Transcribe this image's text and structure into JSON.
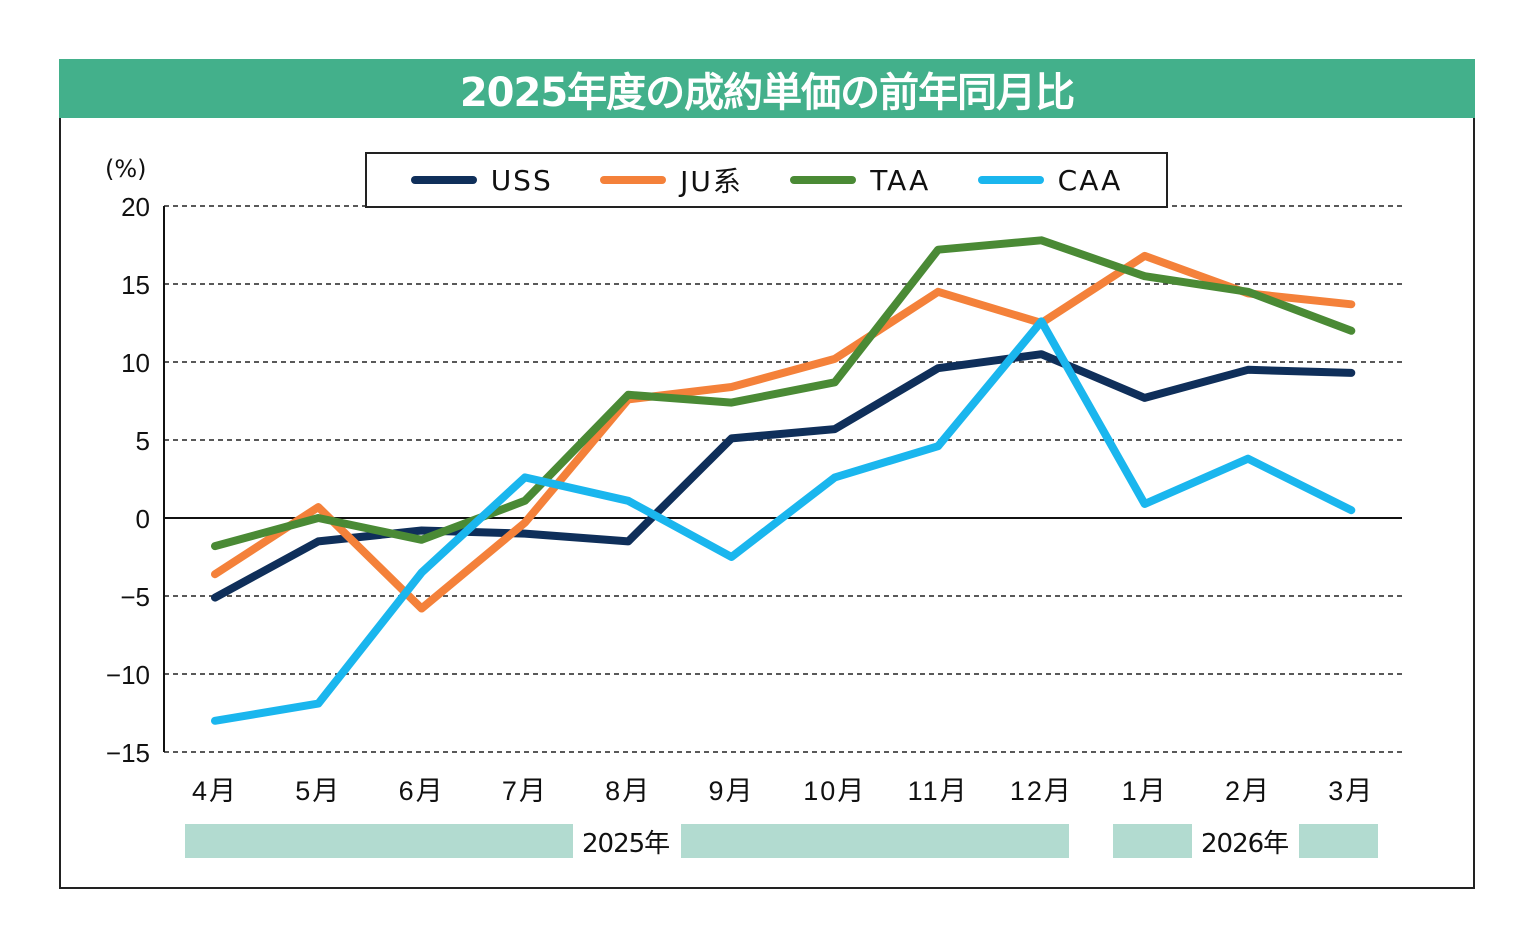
{
  "title": "2025年度の成約単価の前年同月比",
  "unit_label": "(%)",
  "years": [
    "2025年",
    "2026年"
  ],
  "chart_data": {
    "type": "line",
    "title": "2025年度の成約単価の前年同月比",
    "xlabel": "",
    "ylabel": "(%)",
    "ylim": [
      -15,
      20
    ],
    "yticks": [
      20,
      15,
      10,
      5,
      0,
      -5,
      -10,
      -15
    ],
    "grid": true,
    "legend": "top-center",
    "categories": [
      "4月",
      "5月",
      "6月",
      "7月",
      "8月",
      "9月",
      "10月",
      "11月",
      "12月",
      "1月",
      "2月",
      "3月"
    ],
    "year_groups": [
      {
        "label": "2025年",
        "from": "4月",
        "to": "12月"
      },
      {
        "label": "2026年",
        "from": "1月",
        "to": "3月"
      }
    ],
    "series": [
      {
        "name": "USS",
        "color": "#0f2f5a",
        "values": [
          -5.1,
          -1.5,
          -0.8,
          -1.0,
          -1.5,
          5.1,
          5.7,
          9.6,
          10.5,
          7.7,
          9.5,
          9.3
        ]
      },
      {
        "name": "JU系",
        "color": "#f4813a",
        "values": [
          -3.6,
          0.7,
          -5.8,
          -0.3,
          7.6,
          8.4,
          10.2,
          14.5,
          12.5,
          16.8,
          14.4,
          13.7
        ]
      },
      {
        "name": "TAA",
        "color": "#4a8a35",
        "values": [
          -1.8,
          0.0,
          -1.4,
          1.1,
          7.9,
          7.4,
          8.7,
          17.2,
          17.8,
          15.5,
          14.5,
          12.0
        ]
      },
      {
        "name": "CAA",
        "color": "#1ab6ee",
        "values": [
          -13.0,
          -11.9,
          -3.5,
          2.6,
          1.1,
          -2.5,
          2.6,
          4.6,
          12.6,
          0.9,
          3.8,
          0.5
        ]
      }
    ]
  }
}
